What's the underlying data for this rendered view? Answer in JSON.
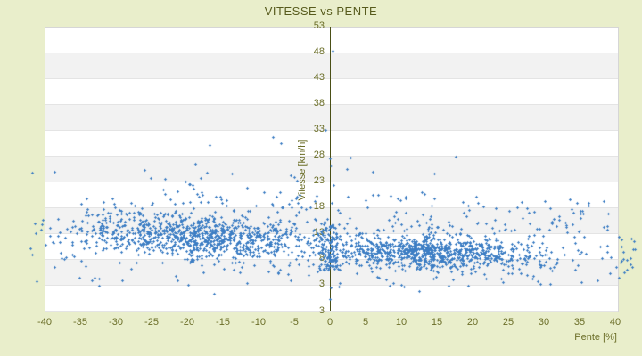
{
  "title": "VITESSE vs PENTE",
  "colors": {
    "page_background": "#e9eecb",
    "title_text": "#575b1d",
    "tick_text": "#6b6e28",
    "axis_line": "#4a4f16",
    "plot_border": "#d6d6d6",
    "band_gray": "#f2f2f2",
    "point_blue": "#3d7ec4"
  },
  "chart_data": {
    "type": "scatter",
    "title": "VITESSE vs PENTE",
    "xlabel": "Pente [%]",
    "ylabel": "Vitesse [km/h]",
    "xlim": [
      -40,
      40.25
    ],
    "ylim": [
      -2,
      53
    ],
    "x_ticks": [
      -40,
      -35,
      -30,
      -25,
      -20,
      -15,
      -10,
      -5,
      0,
      5,
      10,
      15,
      20,
      25,
      30,
      35,
      40
    ],
    "y_ticks": [
      53,
      48,
      43,
      38,
      33,
      28,
      23,
      18,
      13,
      8,
      3
    ],
    "y_axis_end_label": {
      "text": "3",
      "value": -2.2
    },
    "grid": "horizontal-bands-every-5",
    "legend": "none",
    "point_shape": "cross",
    "point_color": "#3d7ec4",
    "description": "Speed vs slope cloud: ~2300 points, dense band 7-14 km/h across all slopes, higher/looser on descents, sparse tail up to 33 km/h, one outlier near 48 km/h, points spill slightly past x=-40 and x=40.",
    "generator": {
      "seed": 42,
      "clusters": [
        {
          "name": "core-left",
          "n": 800,
          "x": {
            "type": "tri",
            "min": -36,
            "max": 0
          },
          "y": {
            "type": "norm",
            "mean0": 11.3,
            "slope": -0.055,
            "sd": 2.0,
            "clip": [
              4.5,
              17.5
            ]
          }
        },
        {
          "name": "core-right",
          "n": 800,
          "x": {
            "type": "tri",
            "min": -4,
            "max": 32
          },
          "y": {
            "type": "norm",
            "mean0": 9.9,
            "slope": -0.04,
            "sd": 1.55,
            "clip": [
              4.5,
              15.5
            ]
          }
        },
        {
          "name": "core-wide",
          "n": 300,
          "x": {
            "type": "uni",
            "min": -41,
            "max": 42.6
          },
          "y": {
            "type": "norm",
            "mean0": 10.5,
            "slope": -0.05,
            "sd": 2.4,
            "clip": [
              3.2,
              18.5
            ]
          }
        },
        {
          "name": "zero-column",
          "n": 120,
          "x": {
            "type": "norm0",
            "sd": 0.8
          },
          "y": {
            "type": "uni",
            "min": 5.8,
            "max": 15.0
          }
        },
        {
          "name": "mid-band",
          "n": 215,
          "x": {
            "type": "uni",
            "min": -35,
            "max": 39,
            "pow": 1.2
          },
          "y": {
            "type": "pow",
            "min": 13.5,
            "span": 6.3,
            "pow": 1.7
          }
        },
        {
          "name": "high-band",
          "n": 38,
          "x": {
            "type": "uni",
            "min": -26,
            "max": 22
          },
          "y": {
            "type": "pow",
            "min": 20,
            "span": 12,
            "pow": 2.2
          }
        },
        {
          "name": "low-band",
          "n": 60,
          "x": {
            "type": "uni",
            "min": -39,
            "max": 32
          },
          "y": {
            "type": "pow",
            "min": 2.3,
            "span": 5.2,
            "pow": 0.85
          }
        }
      ],
      "explicit_points": [
        [
          0.4,
          48.4
        ],
        [
          -0.6,
          33.0
        ],
        [
          -8.0,
          31.6
        ],
        [
          -16.9,
          30.1
        ],
        [
          -38.6,
          24.9
        ],
        [
          -41.8,
          24.7
        ],
        [
          -25.1,
          23.7
        ],
        [
          -17.3,
          24.7
        ],
        [
          -13.8,
          24.6
        ],
        [
          -5.0,
          23.9
        ],
        [
          0.0,
          27.5
        ],
        [
          2.4,
          25.4
        ],
        [
          0.5,
          22.3
        ],
        [
          6.0,
          20.4
        ],
        [
          6.8,
          20.4
        ],
        [
          13.3,
          20.6
        ],
        [
          35.5,
          16.8
        ],
        [
          38.4,
          14.2
        ],
        [
          31.8,
          14.4
        ],
        [
          -41.4,
          14.9
        ],
        [
          -40.4,
          14.7
        ],
        [
          -41.3,
          13.0
        ],
        [
          -42.0,
          10.1
        ],
        [
          -41.8,
          8.9
        ],
        [
          -41.1,
          3.7
        ],
        [
          40.5,
          12.3
        ],
        [
          41.1,
          9.4
        ],
        [
          42.5,
          9.9
        ],
        [
          40.9,
          7.7
        ],
        [
          41.6,
          7.8
        ],
        [
          41.6,
          6.0
        ],
        [
          42.1,
          7.0
        ],
        [
          41.3,
          5.4
        ],
        [
          42.8,
          9.9
        ],
        [
          -16.3,
          1.2
        ],
        [
          12.5,
          1.8
        ],
        [
          0.0,
          0.3
        ],
        [
          0.1,
          2.4
        ]
      ]
    }
  }
}
